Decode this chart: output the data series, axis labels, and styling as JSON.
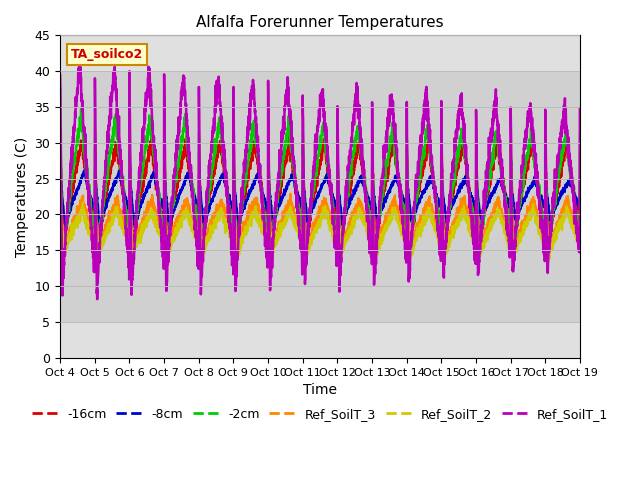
{
  "title": "Alfalfa Forerunner Temperatures",
  "xlabel": "Time",
  "ylabel": "Temperatures (C)",
  "ylim": [
    0,
    45
  ],
  "xlim": [
    0,
    15
  ],
  "annotation_text": "TA_soilco2",
  "annotation_color": "#cc0000",
  "annotation_bg": "#ffffcc",
  "annotation_border": "#cc8800",
  "xtick_labels": [
    "Oct 4",
    "Oct 5",
    "Oct 6",
    "Oct 7",
    "Oct 8",
    "Oct 9",
    "Oct 10",
    "Oct 11",
    "Oct 12",
    "Oct 13",
    "Oct 14",
    "Oct 15",
    "Oct 16",
    "Oct 17",
    "Oct 18",
    "Oct 19"
  ],
  "xtick_positions": [
    0,
    1,
    2,
    3,
    4,
    5,
    6,
    7,
    8,
    9,
    10,
    11,
    12,
    13,
    14,
    15
  ],
  "ytick_labels": [
    "0",
    "5",
    "10",
    "15",
    "20",
    "25",
    "30",
    "35",
    "40",
    "45"
  ],
  "ytick_positions": [
    0,
    5,
    10,
    15,
    20,
    25,
    30,
    35,
    40,
    45
  ],
  "grid_color": "#bbbbbb",
  "bg_inner": "#e0e0e0",
  "bg_band_lo": 5,
  "bg_band_hi": 40,
  "bg_band_color": "#d0d0d0",
  "series": [
    {
      "label": "-16cm",
      "color": "#dd0000",
      "lw": 1.5
    },
    {
      "label": "-8cm",
      "color": "#0000cc",
      "lw": 1.5
    },
    {
      "label": "-2cm",
      "color": "#00cc00",
      "lw": 1.5
    },
    {
      "label": "Ref_SoilT_3",
      "color": "#ff8800",
      "lw": 1.5
    },
    {
      "label": "Ref_SoilT_2",
      "color": "#cccc00",
      "lw": 1.5
    },
    {
      "label": "Ref_SoilT_1",
      "color": "#bb00bb",
      "lw": 1.8
    }
  ],
  "legend_ncol": 6,
  "legend_fontsize": 9
}
